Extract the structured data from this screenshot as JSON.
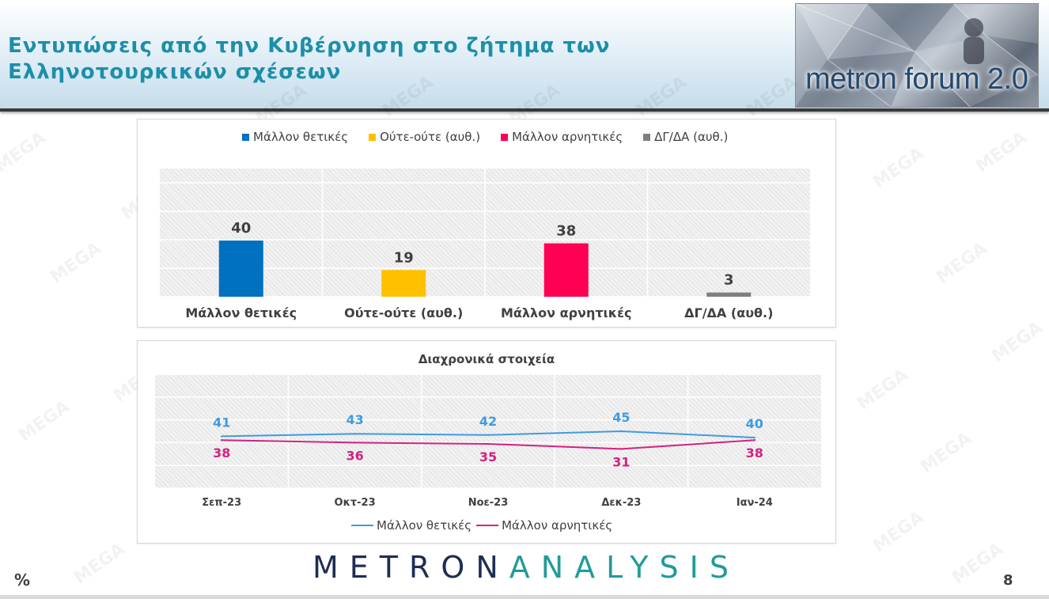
{
  "slide": {
    "title": "Εντυπώσεις από την Κυβέρνηση στο ζήτημα των Ελληνοτουρκικών σχέσεων",
    "logo_text": "metron forum 2.0",
    "brand_left": "METRON",
    "brand_right": "ANALYSIS",
    "unit": "%",
    "page_number": "8",
    "watermark": "MEGA"
  },
  "colors": {
    "positive": "#0070c0",
    "neutral": "#ffc000",
    "negative": "#ff0052",
    "dk": "#7f7f7f",
    "line_positive": "#3f9be0",
    "line_negative": "#d4217f"
  },
  "chart_data": [
    {
      "type": "bar",
      "categories": [
        "Μάλλον θετικές",
        "Ούτε-ούτε (αυθ.)",
        "Μάλλον αρνητικές",
        "ΔΓ/ΔΑ (αυθ.)"
      ],
      "values": [
        40,
        19,
        38,
        3
      ],
      "legend": [
        "Μάλλον θετικές",
        "Ούτε-ούτε (αυθ.)",
        "Μάλλον αρνητικές",
        "ΔΓ/ΔΑ (αυθ.)"
      ],
      "legend_position": "top",
      "ylim": [
        0,
        45
      ],
      "grid": true
    },
    {
      "type": "line",
      "title": "Διαχρονικά στοιχεία",
      "categories": [
        "Σεπ-23",
        "Οκτ-23",
        "Νοε-23",
        "Δεκ-23",
        "Ιαν-24"
      ],
      "series": [
        {
          "name": "Μάλλον θετικές",
          "values": [
            41,
            43,
            42,
            45,
            40
          ]
        },
        {
          "name": "Μάλλον αρνητικές",
          "values": [
            38,
            36,
            35,
            31,
            38
          ]
        }
      ],
      "legend_position": "bottom",
      "ylim": [
        0,
        90
      ],
      "grid": true
    }
  ]
}
